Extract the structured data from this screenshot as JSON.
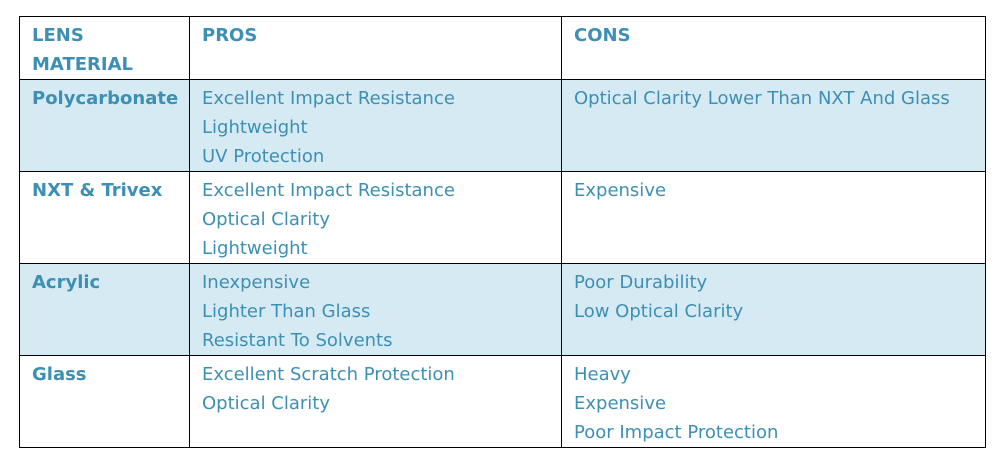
{
  "table": {
    "headers": [
      "LENS MATERIAL",
      "PROS",
      "CONS"
    ],
    "rows": [
      {
        "material": "Polycarbonate",
        "pros": [
          "Excellent Impact Resistance",
          "Lightweight",
          "UV Protection"
        ],
        "cons": [
          "Optical Clarity Lower Than NXT And Glass"
        ],
        "shaded": true
      },
      {
        "material": "NXT & Trivex",
        "pros": [
          "Excellent Impact Resistance",
          "Optical Clarity",
          "Lightweight"
        ],
        "cons": [
          "Expensive"
        ],
        "shaded": false
      },
      {
        "material": "Acrylic",
        "pros": [
          "Inexpensive",
          "Lighter Than Glass",
          "Resistant To Solvents"
        ],
        "cons": [
          "Poor Durability",
          "Low Optical Clarity"
        ],
        "shaded": true
      },
      {
        "material": "Glass",
        "pros": [
          "Excellent Scratch Protection",
          "Optical Clarity"
        ],
        "cons": [
          "Heavy",
          "Expensive",
          "Poor Impact Protection"
        ],
        "shaded": false
      }
    ]
  },
  "colors": {
    "text": "#3d8fb4",
    "shade": "#d6eaf3",
    "border": "#000000"
  }
}
